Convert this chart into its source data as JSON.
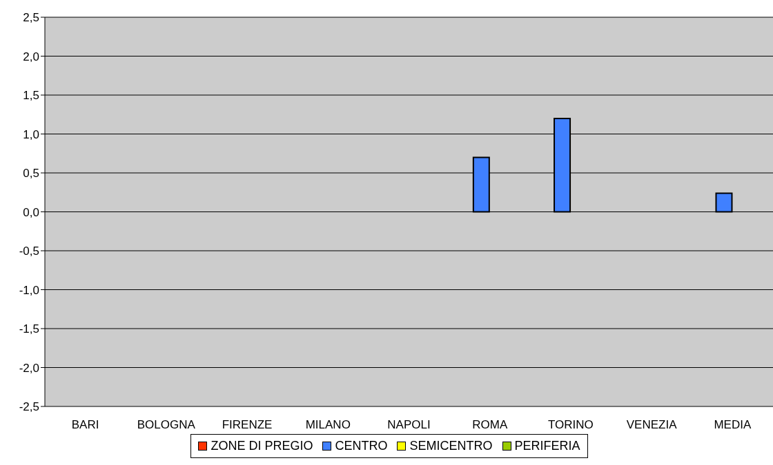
{
  "chart_data": {
    "type": "bar",
    "categories": [
      "BARI",
      "BOLOGNA",
      "FIRENZE",
      "MILANO",
      "NAPOLI",
      "ROMA",
      "TORINO",
      "VENEZIA",
      "MEDIA"
    ],
    "series": [
      {
        "name": "ZONE DI PREGIO",
        "color": "#ff3300",
        "values": [
          0,
          0,
          0,
          0,
          0,
          0,
          0,
          0,
          0
        ]
      },
      {
        "name": "CENTRO",
        "color": "#4080ff",
        "values": [
          0,
          0,
          0,
          0,
          0,
          0.7,
          1.2,
          0,
          0.24
        ]
      },
      {
        "name": "SEMICENTRO",
        "color": "#ffff00",
        "values": [
          0,
          0,
          0,
          0,
          0,
          0,
          0,
          0,
          0
        ]
      },
      {
        "name": "PERIFERIA",
        "color": "#99cc00",
        "values": [
          0,
          0,
          0,
          0,
          0,
          0,
          0,
          0,
          0
        ]
      }
    ],
    "ylim": [
      -2.5,
      2.5
    ],
    "yticks": [
      {
        "value": -2.5,
        "label": "-2,5"
      },
      {
        "value": -2,
        "label": "-2,0"
      },
      {
        "value": -1.5,
        "label": "-1,5"
      },
      {
        "value": -1,
        "label": "-1,0"
      },
      {
        "value": -0.5,
        "label": "-0,5"
      },
      {
        "value": 0,
        "label": "0,0"
      },
      {
        "value": 0.5,
        "label": "0,5"
      },
      {
        "value": 1,
        "label": "1,0"
      },
      {
        "value": 1.5,
        "label": "1,5"
      },
      {
        "value": 2,
        "label": "2,0"
      },
      {
        "value": 2.5,
        "label": "2,5"
      }
    ],
    "grid": "y",
    "legend": "bottom"
  }
}
